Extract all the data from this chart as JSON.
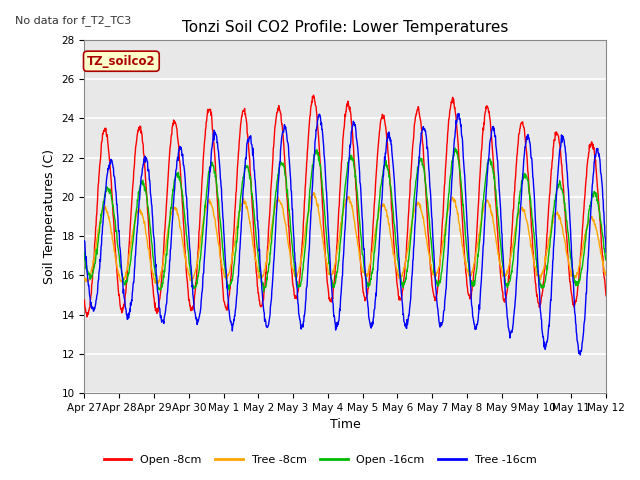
{
  "title": "Tonzi Soil CO2 Profile: Lower Temperatures",
  "subtitle": "No data for f_T2_TC3",
  "ylabel": "Soil Temperatures (C)",
  "xlabel": "Time",
  "ylim": [
    10,
    28
  ],
  "xtick_labels": [
    "Apr 27",
    "Apr 28",
    "Apr 29",
    "Apr 30",
    "May 1",
    "May 2",
    "May 3",
    "May 4",
    "May 5",
    "May 6",
    "May 7",
    "May 8",
    "May 9",
    "May 10",
    "May 11",
    "May 12"
  ],
  "legend_labels": [
    "Open -8cm",
    "Tree -8cm",
    "Open -16cm",
    "Tree -16cm"
  ],
  "line_colors": [
    "#ff0000",
    "#ffa500",
    "#00bb00",
    "#0000ff"
  ],
  "annotation_box": "TZ_soilco2",
  "annotation_color": "#aa0000",
  "annotation_bg": "#ffffcc",
  "bg_color": "#e8e8e8",
  "title_fontsize": 11,
  "axis_label_fontsize": 9,
  "tick_fontsize": 7.5,
  "legend_fontsize": 8
}
